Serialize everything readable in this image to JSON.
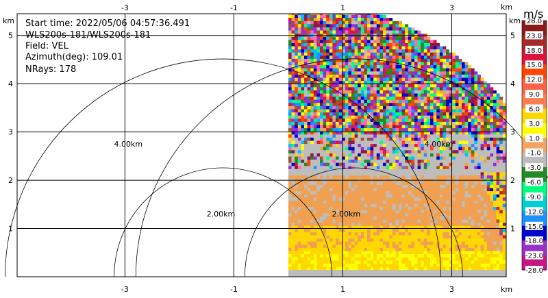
{
  "info": {
    "start_time": "Start time: 2022/05/06 04:57:36.491",
    "instrument": "WLS200s-181/WLS200s-181",
    "field": "Field: VEL",
    "azimuth": "Azimuth(deg): 109.01",
    "nrays": "NRays: 178"
  },
  "colors": {
    "grid": "#000000",
    "gray_band": "#bdbdbd",
    "orange_band": "#f0a050",
    "yellow_band": "#ffd700",
    "bright_yellow": "#ffff00",
    "noise": [
      "#8b1a4a",
      "#a0522d",
      "#ff4500",
      "#ffd700",
      "#ffff00",
      "#00bfff",
      "#1e90ff",
      "#0000cd",
      "#9932cc",
      "#ff69b4",
      "#228b22",
      "#00ff7f",
      "#bdbdbd",
      "#f0a050",
      "#dc143c",
      "#8a2be2"
    ]
  },
  "chart_data": {
    "type": "heatmap",
    "title": "",
    "x_unit": "km",
    "y_unit": "km",
    "xlim": [
      -4.98,
      4.0
    ],
    "ylim": [
      0,
      5.45
    ],
    "x_ticks": [
      -3,
      -1,
      1,
      3
    ],
    "x_tick_labels": [
      "-3",
      "-1",
      "1",
      "3"
    ],
    "y_ticks": [
      1,
      2,
      3,
      4,
      5
    ],
    "y_tick_labels": [
      "1",
      "2",
      "3",
      "4",
      "5"
    ],
    "range_rings": [
      {
        "radius_km": 2.0,
        "label": "2.00km"
      },
      {
        "radius_km": 4.0,
        "label": "4.00km"
      }
    ],
    "rings_centered_at_sector": [
      {
        "radius_km": 2.0,
        "label": "2.00km"
      },
      {
        "radius_km": 4.0,
        "label": "4.00km"
      }
    ],
    "sector": {
      "origin_x_km": 0.0,
      "origin_y_km": 0.0,
      "max_range_km": 5.1,
      "az_start_deg": 0,
      "az_end_deg": 90
    },
    "colorbar": {
      "unit": "m/s",
      "boundaries": [
        "28.0",
        "23.0",
        "18.0",
        "15.0",
        "12.0",
        "9.0",
        "6.0",
        "3.0",
        "1.0",
        "-1.0",
        "-3.0",
        "-6.0",
        "-9.0",
        "-12.0",
        "-15.0",
        "-18.0",
        "-23.0",
        "-28.0"
      ],
      "colors": [
        "#8b1a1a",
        "#a52a2a",
        "#dc143c",
        "#ff4500",
        "#ff6347",
        "#ff7f50",
        "#ffd700",
        "#ffff00",
        "#f4a460",
        "#bdbdbd",
        "#228b22",
        "#00ff7f",
        "#00ced1",
        "#1e90ff",
        "#0000cd",
        "#9932cc",
        "#c71585"
      ]
    }
  }
}
